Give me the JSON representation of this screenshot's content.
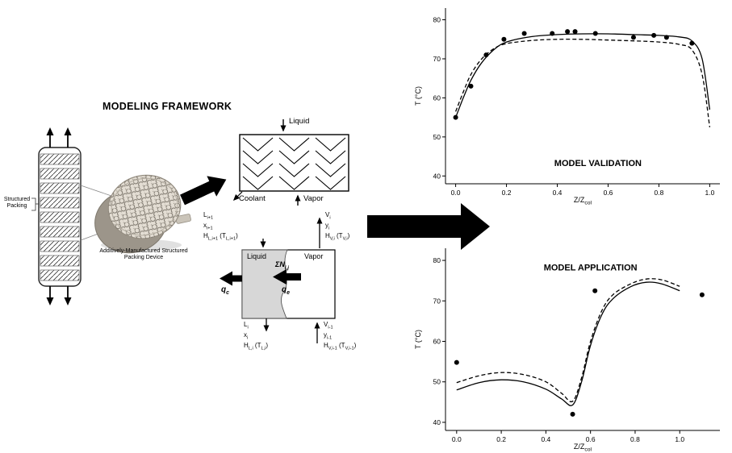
{
  "figure_title": "MODELING FRAMEWORK",
  "left_panel": {
    "structured_packing_label": "Structured Packing",
    "device_label": "Additively-Manufactured Structured Packing Device"
  },
  "heat_exchanger": {
    "liquid_label": "Liquid",
    "coolant_label": "Coolant",
    "vapor_label": "Vapor"
  },
  "stage": {
    "liquid_label": "Liquid",
    "vapor_label": "Vapor",
    "flux_label": "ΣN_{i,j}",
    "qc_label": "q_{c}",
    "qe_label": "q_{e}",
    "liquid_in_labels": [
      "L_{i+1}",
      "x_{i+1}",
      "H_{L,i+1} (T_{L,i+1})"
    ],
    "vapor_out_labels": [
      "V_{i}",
      "y_{i}",
      "H_{V,i} (T_{V,i})"
    ],
    "liquid_out_labels": [
      "L_{i}",
      "x_{i}",
      "H_{L,i} (T_{L,i})"
    ],
    "vapor_in_labels": [
      "V_{i-1}",
      "y_{i-1}",
      "H_{V,i-1} (T_{V,i-1})"
    ]
  },
  "chart_data": [
    {
      "type": "line",
      "title": "MODEL VALIDATION",
      "xlabel": "Z/Z_{col}",
      "ylabel": "T (°C)",
      "xlim": [
        -0.04,
        1.04
      ],
      "ylim": [
        38,
        83
      ],
      "xticks": [
        "0.0",
        "0.2",
        "0.4",
        "0.6",
        "0.8",
        "1.0"
      ],
      "yticks": [
        "40",
        "50",
        "60",
        "70",
        "80"
      ],
      "grid": false,
      "legend": "none",
      "title_pos": {
        "x": 0.56,
        "y": 42.5
      },
      "series": [
        {
          "name": "model-prediction-solid",
          "type": "line",
          "dash": "none",
          "x": [
            0,
            0.03,
            0.06,
            0.1,
            0.15,
            0.2,
            0.3,
            0.4,
            0.5,
            0.6,
            0.7,
            0.8,
            0.88,
            0.93,
            0.97,
            1.0
          ],
          "y": [
            55,
            60,
            64.5,
            68.8,
            72.3,
            74.3,
            75.7,
            76.2,
            76.4,
            76.4,
            76.2,
            76.0,
            75.6,
            74.6,
            70,
            57
          ]
        },
        {
          "name": "model-prediction-dashed",
          "type": "line",
          "dash": "5,3",
          "x": [
            0,
            0.03,
            0.06,
            0.1,
            0.15,
            0.2,
            0.3,
            0.4,
            0.5,
            0.6,
            0.7,
            0.8,
            0.88,
            0.93,
            0.97,
            1.0
          ],
          "y": [
            56.5,
            61.5,
            66,
            69.8,
            72.6,
            73.9,
            74.7,
            75,
            75,
            74.8,
            74.6,
            74.3,
            73.7,
            72.3,
            66,
            52.5
          ]
        },
        {
          "name": "experimental-points",
          "type": "scatter",
          "x": [
            0.0,
            0.06,
            0.12,
            0.19,
            0.27,
            0.38,
            0.44,
            0.47,
            0.55,
            0.7,
            0.78,
            0.83,
            0.93
          ],
          "y": [
            55,
            63,
            71,
            75,
            76.5,
            76.5,
            77,
            77,
            76.5,
            75.5,
            76,
            75.5,
            74
          ]
        }
      ]
    },
    {
      "type": "line",
      "title": "MODEL APPLICATION",
      "xlabel": "Z/Z_{col}",
      "ylabel": "T (°C)",
      "xlim": [
        -0.05,
        1.18
      ],
      "ylim": [
        38,
        83
      ],
      "xticks": [
        "0.0",
        "0.2",
        "0.4",
        "0.6",
        "0.8",
        "1.0"
      ],
      "yticks": [
        "40",
        "50",
        "60",
        "70",
        "80"
      ],
      "grid": false,
      "legend": "none",
      "title_pos": {
        "x": 0.6,
        "y": 77.5
      },
      "series": [
        {
          "name": "model-prediction-solid",
          "type": "line",
          "dash": "none",
          "x": [
            0,
            0.1,
            0.2,
            0.3,
            0.4,
            0.47,
            0.52,
            0.56,
            0.6,
            0.65,
            0.7,
            0.78,
            0.85,
            0.92,
            1.0
          ],
          "y": [
            48,
            49.8,
            50.5,
            50,
            48.2,
            45.8,
            44.3,
            50,
            59,
            66.5,
            70.5,
            73.5,
            74.6,
            74.2,
            72.5
          ]
        },
        {
          "name": "model-prediction-dashed",
          "type": "line",
          "dash": "5,3",
          "x": [
            0,
            0.1,
            0.2,
            0.3,
            0.4,
            0.47,
            0.52,
            0.56,
            0.6,
            0.65,
            0.7,
            0.78,
            0.85,
            0.92,
            1.0
          ],
          "y": [
            49.8,
            51.5,
            52.3,
            51.8,
            50,
            47.2,
            45.2,
            51,
            60,
            67.5,
            71.5,
            74.2,
            75.4,
            75.2,
            73.6
          ]
        },
        {
          "name": "experimental-points",
          "type": "scatter",
          "x": [
            0.0,
            0.52,
            0.62,
            1.1
          ],
          "y": [
            54.8,
            42,
            72.5,
            71.5
          ]
        }
      ]
    }
  ]
}
